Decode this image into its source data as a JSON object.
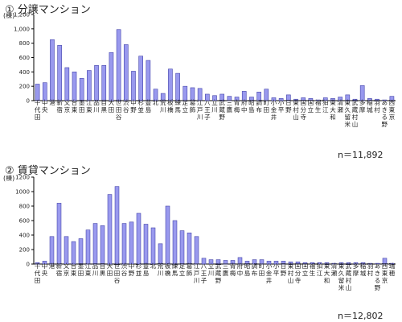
{
  "colors": {
    "bar_fill": "#9999ee",
    "bar_stroke": "#4444aa",
    "axis": "#000000"
  },
  "chart_data": [
    {
      "type": "bar",
      "title": "① 分譲マンション",
      "ylabel": "(棟)",
      "ylim": [
        0,
        1200
      ],
      "yticks": [
        0,
        200,
        400,
        600,
        800,
        1000,
        1200
      ],
      "ytick_labels": [
        "0",
        "200",
        "400",
        "600",
        "800",
        "1,000",
        "1,200"
      ],
      "grid": false,
      "note": "n＝11,892",
      "categories": [
        "千代田",
        "中央",
        "港",
        "新宿",
        "文京",
        "台東",
        "墨田",
        "江東",
        "品川",
        "目黒",
        "大田",
        "世田谷",
        "渋谷",
        "中野",
        "杉並",
        "豊島",
        "北",
        "荒川",
        "板橋",
        "練馬",
        "足立",
        "葛飾",
        "江戸川",
        "八王子",
        "立川",
        "武蔵野",
        "三鷹",
        "青梅",
        "府中",
        "昭島",
        "調布",
        "町田",
        "小金井",
        "小平",
        "日野",
        "東村山",
        "国分寺",
        "国立",
        "福生",
        "狛江",
        "東大和",
        "清瀬",
        "東久留米",
        "武蔵村山",
        "多摩",
        "稲城",
        "羽村",
        "あきる野",
        "西東京"
      ],
      "values": [
        230,
        250,
        850,
        770,
        460,
        400,
        310,
        420,
        490,
        490,
        670,
        990,
        780,
        410,
        620,
        560,
        160,
        100,
        440,
        380,
        200,
        180,
        170,
        90,
        70,
        90,
        60,
        50,
        130,
        50,
        120,
        160,
        40,
        30,
        80,
        20,
        40,
        30,
        10,
        40,
        30,
        50,
        80,
        20,
        210,
        30,
        20,
        10,
        60
      ]
    },
    {
      "type": "bar",
      "title": "② 賃貸マンション",
      "ylabel": "(棟)",
      "ylim": [
        0,
        1200
      ],
      "yticks": [
        0,
        200,
        400,
        600,
        800,
        1000,
        1200
      ],
      "ytick_labels": [
        "0",
        "200",
        "400",
        "600",
        "800",
        "1000",
        "1200"
      ],
      "grid": false,
      "note": "n＝12,802",
      "categories": [
        "千代田",
        "中央",
        "港",
        "新宿",
        "文京",
        "台東",
        "墨田",
        "江東",
        "品川",
        "目黒",
        "大田",
        "世田谷",
        "渋谷",
        "中野",
        "杉並",
        "豊島",
        "北",
        "荒川",
        "板橋",
        "練馬",
        "足立",
        "葛飾",
        "江戸川",
        "八王子",
        "立川",
        "武蔵野",
        "三鷹",
        "青梅",
        "府中",
        "昭島",
        "調布",
        "町田",
        "小金井",
        "小平",
        "日野",
        "東村山",
        "国分寺",
        "国立",
        "福生",
        "狛江",
        "東大和",
        "清瀬",
        "東久留米",
        "武蔵村山",
        "多摩",
        "稲城",
        "羽村",
        "あきる野",
        "西東京",
        "瑞穂"
      ],
      "values": [
        20,
        40,
        380,
        840,
        380,
        310,
        350,
        470,
        560,
        530,
        960,
        1070,
        560,
        580,
        700,
        550,
        500,
        280,
        800,
        600,
        460,
        430,
        380,
        80,
        60,
        60,
        50,
        50,
        90,
        40,
        60,
        60,
        40,
        40,
        40,
        30,
        30,
        20,
        20,
        20,
        20,
        10,
        20,
        20,
        20,
        20,
        10,
        10,
        80,
        10
      ]
    }
  ]
}
